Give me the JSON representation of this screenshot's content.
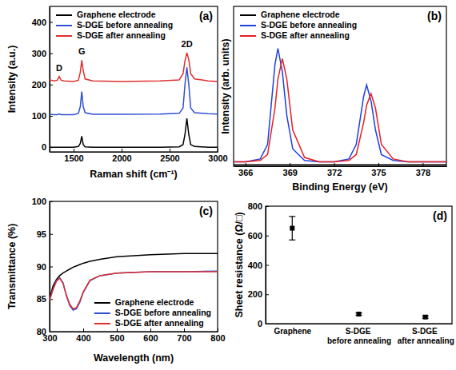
{
  "chart_data": [
    {
      "type": "line",
      "title": "(a)",
      "x_label": "Raman shift (cm⁻¹)",
      "y_label": "Intensity (a.u.)",
      "x": [
        1250,
        1300,
        1330,
        1350,
        1370,
        1400,
        1500,
        1550,
        1570,
        1585,
        1600,
        1620,
        1700,
        2000,
        2400,
        2600,
        2640,
        2660,
        2680,
        2700,
        2720,
        2760,
        2900,
        3000
      ],
      "series": [
        {
          "name": "Graphene electrode",
          "color": "#000000",
          "values": [
            0,
            0,
            0,
            0,
            0,
            0,
            0,
            2,
            12,
            35,
            8,
            1,
            0,
            0,
            0,
            1,
            8,
            40,
            92,
            40,
            8,
            2,
            0,
            0
          ]
        },
        {
          "name": "S-DGE before annealing",
          "color": "#3050d0",
          "values": [
            105,
            104,
            104,
            106,
            104,
            104,
            104,
            108,
            130,
            178,
            130,
            110,
            105,
            105,
            106,
            108,
            125,
            200,
            255,
            200,
            125,
            110,
            107,
            106
          ]
        },
        {
          "name": "S-DGE after annealing",
          "color": "#e03030",
          "values": [
            215,
            212,
            214,
            226,
            214,
            212,
            210,
            214,
            240,
            278,
            245,
            218,
            212,
            210,
            212,
            215,
            235,
            275,
            302,
            280,
            235,
            218,
            212,
            210
          ]
        }
      ],
      "xlim": [
        1250,
        3000
      ],
      "xticks": [
        1500,
        2000,
        2500,
        3000
      ],
      "ylim": [
        -15,
        450
      ],
      "yticks": [
        0,
        100,
        200,
        300,
        400
      ],
      "annotations": [
        {
          "text": "D",
          "x": 1350
        },
        {
          "text": "G",
          "x": 1585
        },
        {
          "text": "2D",
          "x": 2680
        }
      ],
      "legend": "upper left"
    },
    {
      "type": "line",
      "title": "(b)",
      "x_label": "Binding Energy (eV)",
      "y_label": "Intensity (arb. units)",
      "x": [
        365.2,
        366,
        367,
        367.5,
        368,
        368.2,
        368.5,
        368.8,
        369.2,
        370,
        371,
        372,
        373,
        373.5,
        374,
        374.2,
        374.5,
        374.8,
        375.2,
        376,
        377,
        378,
        379.6
      ],
      "series": [
        {
          "name": "Graphene electrode",
          "color": "#000000",
          "values": [
            0.01,
            0.01,
            0.01,
            0.01,
            0.01,
            0.01,
            0.01,
            0.01,
            0.01,
            0.01,
            0.01,
            0.01,
            0.01,
            0.01,
            0.01,
            0.01,
            0.01,
            0.01,
            0.01,
            0.01,
            0.01,
            0.01,
            0.01
          ]
        },
        {
          "name": "S-DGE before annealing",
          "color": "#1f3fe0",
          "values": [
            0.03,
            0.03,
            0.05,
            0.15,
            0.7,
            0.81,
            0.65,
            0.35,
            0.12,
            0.04,
            0.03,
            0.03,
            0.05,
            0.15,
            0.48,
            0.56,
            0.45,
            0.25,
            0.08,
            0.04,
            0.03,
            0.03,
            0.03
          ]
        },
        {
          "name": "S-DGE after annealing",
          "color": "#e62020",
          "values": [
            0.03,
            0.03,
            0.04,
            0.08,
            0.4,
            0.6,
            0.74,
            0.6,
            0.25,
            0.06,
            0.03,
            0.03,
            0.04,
            0.08,
            0.3,
            0.42,
            0.5,
            0.4,
            0.15,
            0.05,
            0.03,
            0.03,
            0.03
          ]
        }
      ],
      "xlim": [
        365.2,
        379.6
      ],
      "xticks": [
        366,
        369,
        372,
        375,
        378
      ],
      "ylim": [
        0,
        1.1
      ],
      "tick_labels": "x",
      "legend": "upper left"
    },
    {
      "type": "line",
      "title": "(c)",
      "x_label": "Wavelength (nm)",
      "y_label": "Transmittance (%)",
      "x": [
        300,
        310,
        320,
        330,
        340,
        350,
        360,
        370,
        380,
        390,
        400,
        420,
        450,
        500,
        600,
        700,
        800
      ],
      "series": [
        {
          "name": "Graphene electrode",
          "color": "#000000",
          "values": [
            85,
            87,
            88,
            88.6,
            89,
            89.3,
            89.6,
            89.9,
            90.1,
            90.3,
            90.5,
            90.8,
            91.1,
            91.5,
            91.8,
            92,
            92
          ]
        },
        {
          "name": "S-DGE before annealing",
          "color": "#3050d0",
          "values": [
            85,
            86.5,
            87.8,
            88.3,
            87.5,
            85.5,
            84,
            83.3,
            83.5,
            84.5,
            86,
            87.8,
            88.6,
            89,
            89.2,
            89.2,
            89.3
          ]
        },
        {
          "name": "S-DGE after annealing",
          "color": "#e03030",
          "values": [
            84.8,
            86.4,
            87.7,
            88.2,
            87.4,
            85.6,
            84.2,
            83.5,
            83.7,
            84.7,
            86.1,
            87.9,
            88.6,
            89,
            89.2,
            89.2,
            89.2
          ]
        }
      ],
      "xlim": [
        300,
        800
      ],
      "xticks": [
        300,
        400,
        500,
        600,
        700,
        800
      ],
      "ylim": [
        80,
        100
      ],
      "yticks": [
        80,
        85,
        90,
        95,
        100
      ],
      "legend": "lower right"
    },
    {
      "type": "scatter",
      "title": "(d)",
      "y_label": "Sheet resistance (Ω/□)",
      "categories": [
        "Graphene",
        "S-DGE before annealing",
        "S-DGE after annealing"
      ],
      "values": [
        650,
        65,
        45
      ],
      "errors": [
        80,
        8,
        8
      ],
      "ylim": [
        0,
        800
      ],
      "yticks": [
        0,
        200,
        400,
        600,
        800
      ],
      "color": "#000000",
      "marker": "square"
    }
  ]
}
